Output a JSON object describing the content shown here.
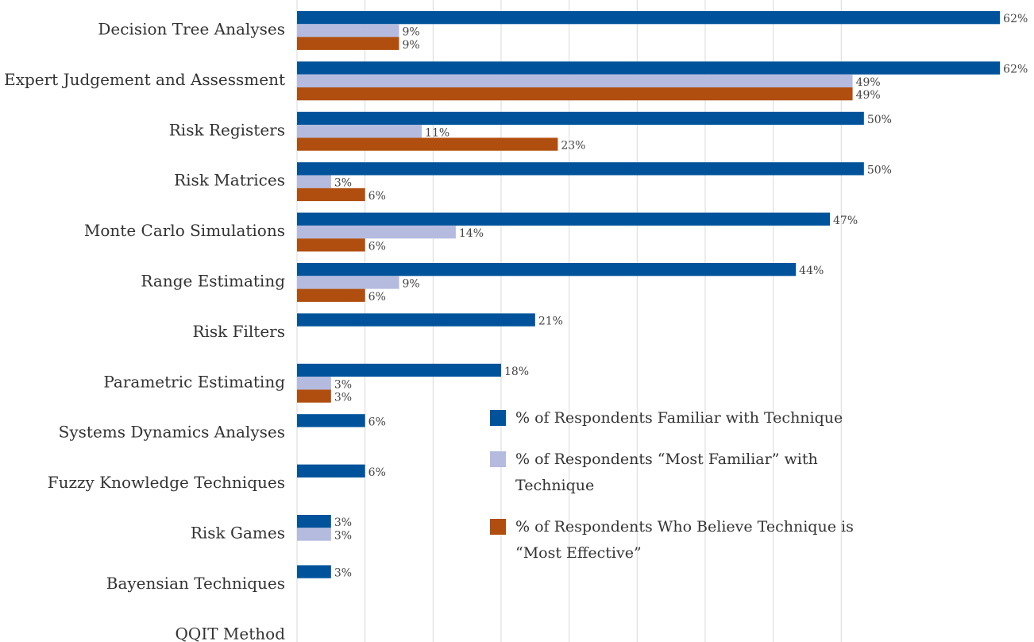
{
  "chart_data": {
    "type": "hbar",
    "categories": [
      "Decision Tree Analyses",
      "Expert Judgement and Assessment",
      "Risk Registers",
      "Risk Matrices",
      "Monte Carlo Simulations",
      "Range Estimating",
      "Risk Filters",
      "Parametric Estimating",
      "Systems Dynamics Analyses",
      "Fuzzy Knowledge Techniques",
      "Risk Games",
      "Bayensian Techniques",
      "QQIT Method"
    ],
    "series": [
      {
        "name": "% of Respondents Familiar with Technique",
        "color": "#00539b",
        "values": [
          62,
          62,
          50,
          50,
          47,
          44,
          21,
          18,
          6,
          6,
          3,
          3,
          null
        ],
        "value_labels": [
          "62%",
          "62%",
          "50%",
          "50%",
          "47%",
          "44%",
          "21%",
          "18%",
          "6%",
          "6%",
          "3%",
          "3%",
          null
        ]
      },
      {
        "name": "% of Respondents “Most Familiar” with Technique",
        "color": "#b4bbdf",
        "values": [
          9,
          49,
          11,
          3,
          14,
          9,
          null,
          3,
          null,
          null,
          3,
          null,
          null
        ],
        "value_labels": [
          "9%",
          "49%",
          "11%",
          "3%",
          "14%",
          "9%",
          null,
          "3%",
          null,
          null,
          "3%",
          null,
          null
        ]
      },
      {
        "name": "% of Respondents Who Believe Technique is “Most Effective”",
        "color": "#b04e0f",
        "values": [
          9,
          49,
          23,
          6,
          6,
          6,
          null,
          3,
          null,
          null,
          null,
          null,
          null
        ],
        "value_labels": [
          "9%",
          "49%",
          "23%",
          "6%",
          "6%",
          "6%",
          null,
          "3%",
          null,
          null,
          null,
          null,
          null
        ]
      }
    ],
    "xlim": [
      0,
      65
    ],
    "xticks": [
      0,
      6,
      12,
      18,
      24,
      30,
      36,
      42,
      48
    ],
    "grid": true
  }
}
